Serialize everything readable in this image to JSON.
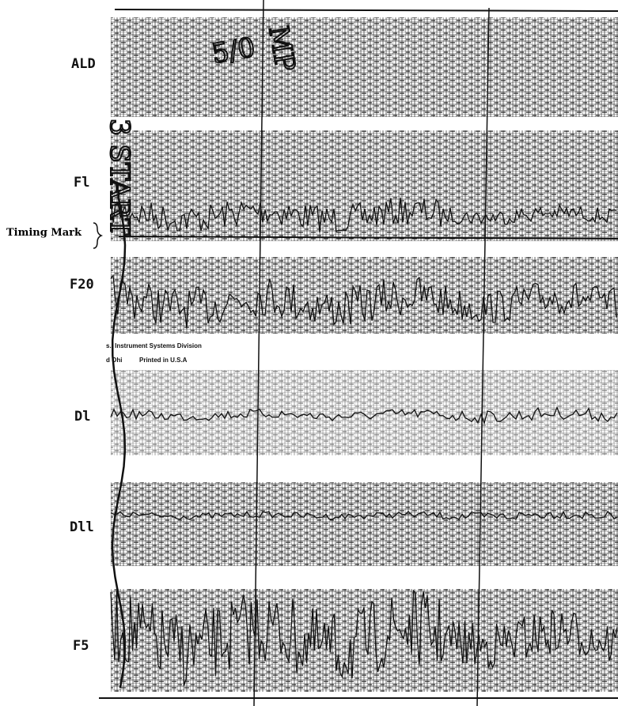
{
  "channels": [
    "ALD",
    "Fl",
    "F20",
    "Dl",
    "Dll",
    "F5"
  ],
  "timing_label": "Timing Mark",
  "printed": {
    "division": "s., Instrument Systems Division",
    "origin": "d Ohi",
    "printed_in": "Printed in U.S.A"
  },
  "handwriting": {
    "start": "3 START",
    "mp": "MP",
    "code": "5/0"
  }
}
